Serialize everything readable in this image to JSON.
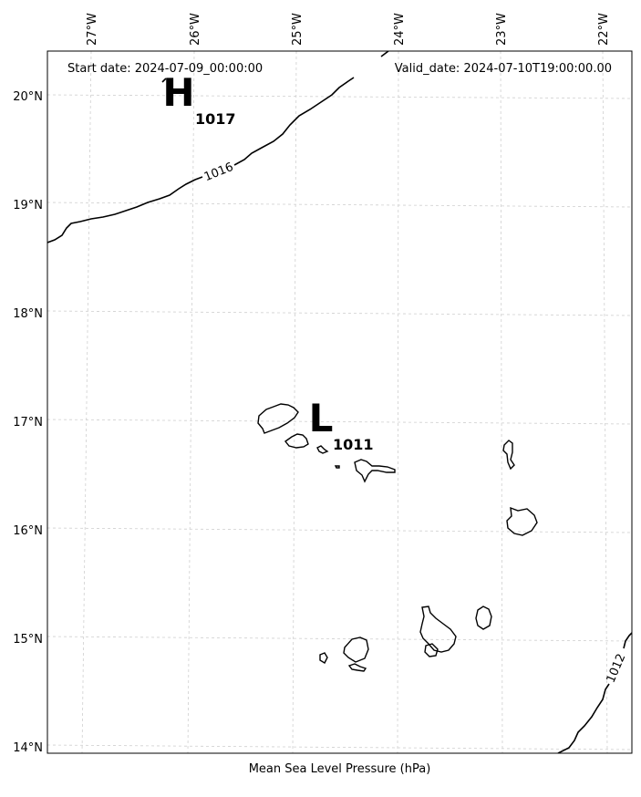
{
  "header": {
    "start_date": "Start date: 2024-07-09_00:00:00",
    "valid_date": "Valid_date: 2024-07-10T19:00:00.00"
  },
  "axes": {
    "lon_ticks": [
      "27°W",
      "26°W",
      "25°W",
      "24°W",
      "23°W",
      "22°W"
    ],
    "lat_ticks": [
      "20°N",
      "19°N",
      "18°N",
      "17°N",
      "16°N",
      "15°N",
      "14°N"
    ],
    "grid": true
  },
  "pressure_centers": {
    "high": {
      "symbol": "H",
      "value": "1017"
    },
    "low": {
      "symbol": "L",
      "value": "1011"
    }
  },
  "isobars": [
    {
      "label": "1016"
    },
    {
      "label": "1012"
    }
  ],
  "caption": "Mean Sea Level Pressure (hPa)"
}
